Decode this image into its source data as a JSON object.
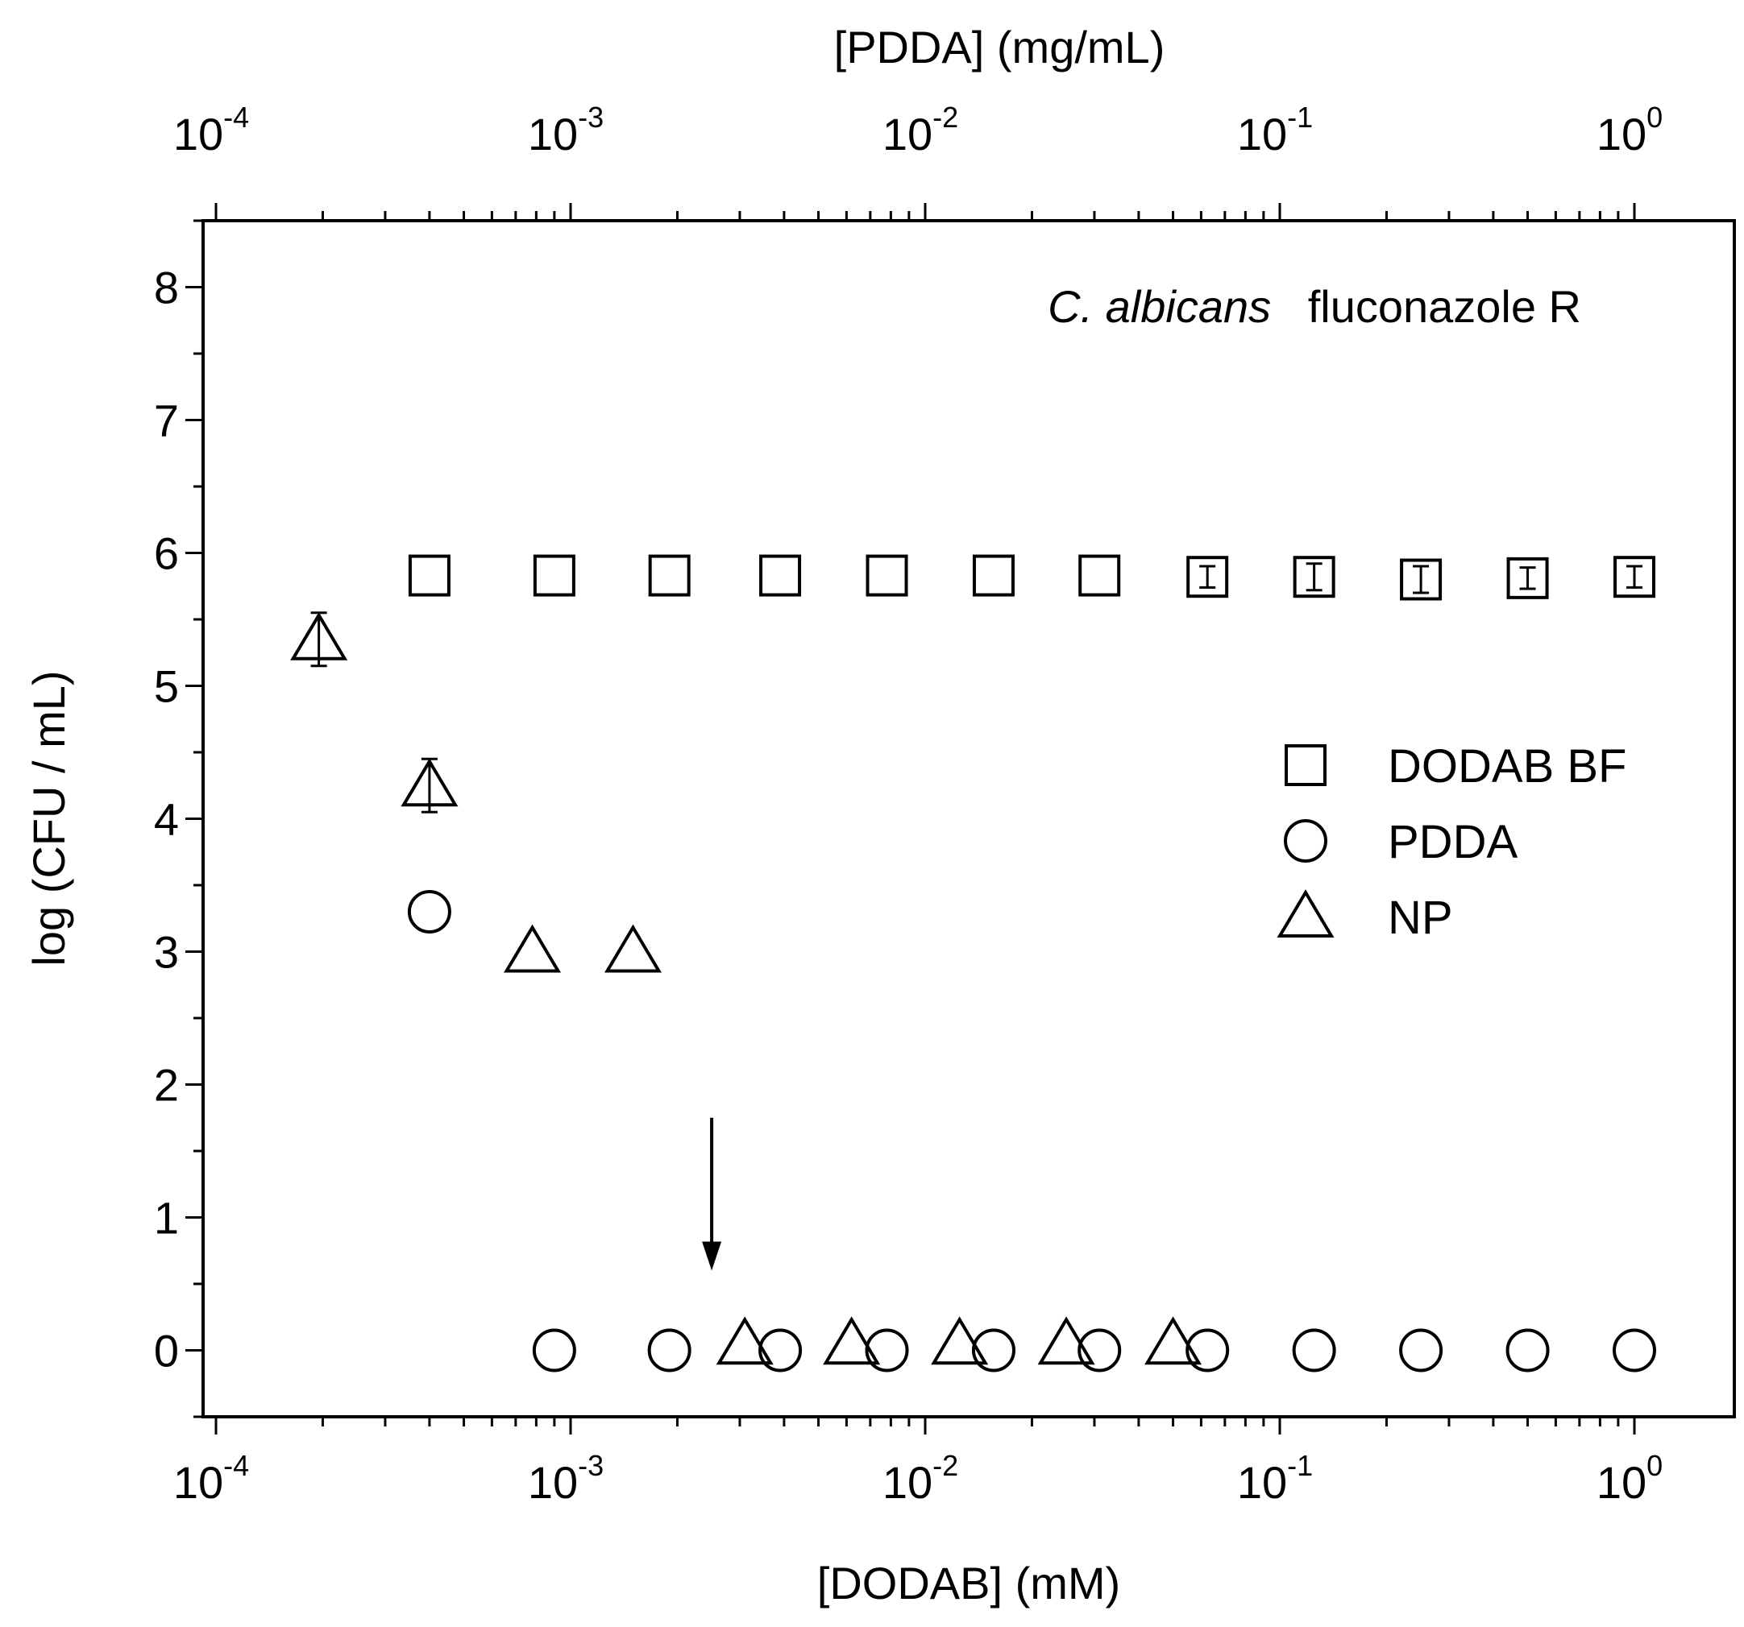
{
  "chart_data": {
    "type": "scatter",
    "xlabel": "[DODAB] (mM)",
    "x2label": "[PDDA] (mg/mL)",
    "ylabel": "log (CFU / mL)",
    "annotation": {
      "italic": "C. albicans",
      "rest": "fluconazole R"
    },
    "x_scale": "log",
    "xlim": [
      9e-05,
      2
    ],
    "ylim": [
      -0.5,
      8.5
    ],
    "x_ticks": [
      {
        "value": 0.0001,
        "base": "10",
        "exp": "-4"
      },
      {
        "value": 0.001,
        "base": "10",
        "exp": "-3"
      },
      {
        "value": 0.01,
        "base": "10",
        "exp": "-2"
      },
      {
        "value": 0.1,
        "base": "10",
        "exp": "-1"
      },
      {
        "value": 1,
        "base": "10",
        "exp": "0"
      }
    ],
    "y_ticks": [
      "0",
      "1",
      "2",
      "3",
      "4",
      "5",
      "6",
      "7",
      "8"
    ],
    "grid": false,
    "legend_position": "right",
    "series": [
      {
        "name": "DODAB BF",
        "marker": "square",
        "x": [
          0.0004,
          0.0009,
          0.0019,
          0.0039,
          0.0078,
          0.0156,
          0.031,
          0.0625,
          0.125,
          0.25,
          0.5,
          1.0
        ],
        "y": [
          5.83,
          5.83,
          5.83,
          5.83,
          5.83,
          5.83,
          5.83,
          5.82,
          5.82,
          5.8,
          5.81,
          5.82
        ],
        "err": [
          0,
          0,
          0,
          0,
          0,
          0,
          0,
          0.08,
          0.1,
          0.1,
          0.08,
          0.08
        ]
      },
      {
        "name": "PDDA",
        "marker": "circle",
        "x": [
          0.0004,
          0.0009,
          0.0019,
          0.0039,
          0.0078,
          0.0156,
          0.031,
          0.0625,
          0.125,
          0.25,
          0.5,
          1.0
        ],
        "y": [
          3.3,
          0,
          0,
          0,
          0,
          0,
          0,
          0,
          0,
          0,
          0,
          0
        ],
        "err": [
          0,
          0,
          0,
          0,
          0,
          0,
          0,
          0,
          0,
          0,
          0,
          0
        ]
      },
      {
        "name": "NP",
        "marker": "triangle",
        "x": [
          0.000195,
          0.0004,
          0.00078,
          0.0015,
          0.0031,
          0.0062,
          0.0125,
          0.025,
          0.05
        ],
        "y": [
          5.35,
          4.25,
          3.0,
          3.0,
          0.05,
          0.05,
          0.05,
          0.05,
          0.05
        ],
        "err": [
          0.2,
          0.2,
          0,
          0,
          0,
          0,
          0,
          0,
          0
        ]
      }
    ],
    "arrow_marker": {
      "x": 0.0025,
      "y_from": 1.75,
      "y_to": 0.6
    }
  }
}
